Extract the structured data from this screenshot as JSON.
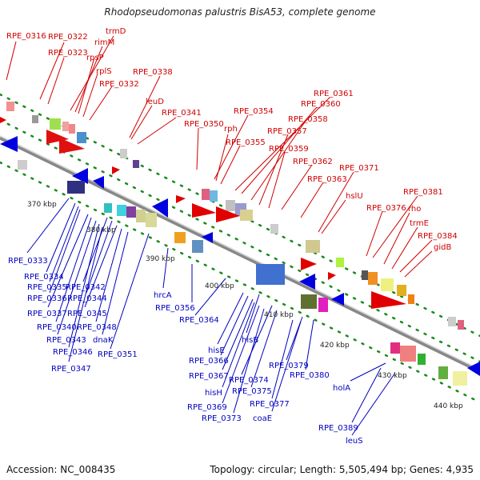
{
  "header": {
    "title": "Rhodopseudomonas palustris BisA53, complete genome"
  },
  "footer": {
    "accession": "Accession: NC_008435",
    "topology": "Topology: circular; Length: 5,505,494 bp; Genes: 4,935"
  },
  "kbp_ticks": [
    "370 kbp",
    "380 kbp",
    "390 kbp",
    "400 kbp",
    "410 kbp",
    "420 kbp",
    "430 kbp",
    "440 kbp"
  ],
  "colors": {
    "top_label": "#d00000",
    "bottom_label": "#0000c0",
    "backbone": "#808080",
    "tick": "#1a8a1a"
  },
  "top_labels": [
    "RPE_0316",
    "RPE_0322",
    "RPE_0323",
    "trmD",
    "rimM",
    "rpsP",
    "rplS",
    "RPE_0332",
    "RPE_0338",
    "leuD",
    "RPE_0341",
    "RPE_0350",
    "RPE_0354",
    "rph",
    "RPE_0355",
    "RPE_0361",
    "RPE_0360",
    "RPE_0358",
    "RPE_0357",
    "RPE_0359",
    "RPE_0362",
    "RPE_0371",
    "RPE_0363",
    "hslU",
    "RPE_0381",
    "RPE_0376",
    "rho",
    "trmE",
    "RPE_0384",
    "gidB"
  ],
  "bottom_labels": [
    "RPE_0333",
    "RPE_0334",
    "RPE_0335",
    "RPE_0342",
    "RPE_0336",
    "RPE_0344",
    "RPE_0337",
    "RPE_0345",
    "RPE_0340",
    "RPE_0348",
    "RPE_0343",
    "dnaK",
    "RPE_0346",
    "RPE_0351",
    "RPE_0347",
    "hrcA",
    "RPE_0356",
    "RPE_0364",
    "hisE",
    "hisB",
    "RPE_0366",
    "RPE_0367",
    "RPE_0374",
    "RPE_0379",
    "hisH",
    "RPE_0375",
    "RPE_0380",
    "RPE_0369",
    "RPE_0377",
    "RPE_0373",
    "coaE",
    "holA",
    "RPE_0389",
    "leuS"
  ]
}
